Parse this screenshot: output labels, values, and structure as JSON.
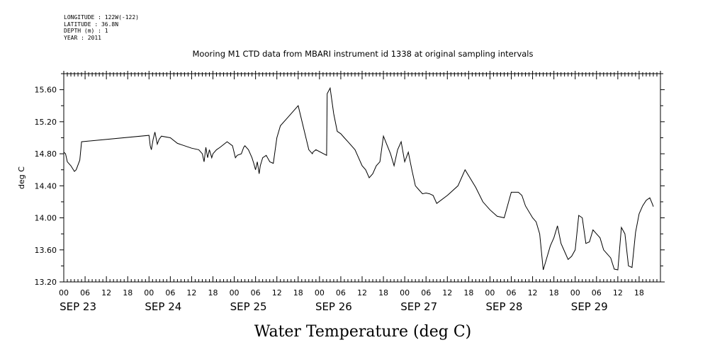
{
  "header": {
    "longitude": "LONGITUDE : 122W(-122)",
    "latitude": "LATITUDE : 36.8N",
    "depth": "DEPTH (m) : 1",
    "year": "YEAR : 2011"
  },
  "chart_data": {
    "type": "line",
    "title": "Mooring M1 CTD data from MBARI instrument id 1338 at original sampling intervals",
    "xlabel": "Water Temperature (deg C)",
    "ylabel": "deg C",
    "xlim": [
      "2011-09-23 00:00",
      "2011-09-30 00:00"
    ],
    "ylim": [
      13.2,
      15.8
    ],
    "y_ticks": [
      "13.20",
      "13.60",
      "14.00",
      "14.40",
      "14.80",
      "15.20",
      "15.60"
    ],
    "hour_ticks": [
      "00",
      "06",
      "12",
      "18",
      "00",
      "06",
      "12",
      "18",
      "00",
      "06",
      "12",
      "18",
      "00",
      "06",
      "12",
      "18",
      "00",
      "06",
      "12",
      "18",
      "00",
      "06",
      "12",
      "18",
      "00",
      "06",
      "12",
      "18"
    ],
    "day_labels": [
      "SEP 23",
      "SEP 24",
      "SEP 25",
      "SEP 26",
      "SEP 27",
      "SEP 28",
      "SEP 29"
    ],
    "grid": false,
    "series": [
      {
        "x": [
          "2011-09-23 00:00",
          "2011-09-23 00:30",
          "2011-09-23 01:00",
          "2011-09-23 02:00",
          "2011-09-23 03:00",
          "2011-09-23 03:30",
          "2011-09-23 04:30",
          "2011-09-23 05:00",
          "2011-09-24 00:00",
          "2011-09-24 00:20",
          "2011-09-24 00:40",
          "2011-09-24 01:10",
          "2011-09-24 01:40",
          "2011-09-24 02:20",
          "2011-09-24 02:50",
          "2011-09-24 03:30",
          "2011-09-24 06:00",
          "2011-09-24 08:00",
          "2011-09-24 12:00",
          "2011-09-24 14:00",
          "2011-09-24 15:00",
          "2011-09-24 15:30",
          "2011-09-24 16:00",
          "2011-09-24 16:30",
          "2011-09-24 17:00",
          "2011-09-24 17:40",
          "2011-09-24 18:00",
          "2011-09-24 19:00",
          "2011-09-24 20:00",
          "2011-09-24 22:00",
          "2011-09-24 23:30",
          "2011-09-25 00:20",
          "2011-09-25 00:50",
          "2011-09-25 02:00",
          "2011-09-25 02:40",
          "2011-09-25 03:00",
          "2011-09-25 04:00",
          "2011-09-25 05:00",
          "2011-09-25 05:30",
          "2011-09-25 06:00",
          "2011-09-25 06:30",
          "2011-09-25 07:00",
          "2011-09-25 07:20",
          "2011-09-25 07:40",
          "2011-09-25 08:00",
          "2011-09-25 09:00",
          "2011-09-25 10:00",
          "2011-09-25 11:00",
          "2011-09-25 12:00",
          "2011-09-25 13:00",
          "2011-09-25 15:00",
          "2011-09-25 18:00",
          "2011-09-25 21:00",
          "2011-09-25 22:00",
          "2011-09-25 22:10",
          "2011-09-25 23:00",
          "2011-09-26 02:00",
          "2011-09-26 02:10",
          "2011-09-26 03:00",
          "2011-09-26 04:00",
          "2011-09-26 05:00",
          "2011-09-26 06:00",
          "2011-09-26 07:00",
          "2011-09-26 08:00",
          "2011-09-26 10:00",
          "2011-09-26 11:00",
          "2011-09-26 12:00",
          "2011-09-26 13:00",
          "2011-09-26 14:00",
          "2011-09-26 15:00",
          "2011-09-26 16:00",
          "2011-09-26 17:00",
          "2011-09-26 18:00",
          "2011-09-26 20:00",
          "2011-09-26 21:00",
          "2011-09-26 22:00",
          "2011-09-26 23:00",
          "2011-09-27 00:00",
          "2011-09-27 01:00",
          "2011-09-27 02:00",
          "2011-09-27 03:00",
          "2011-09-27 04:00",
          "2011-09-27 05:00",
          "2011-09-27 06:00",
          "2011-09-27 07:00",
          "2011-09-27 08:00",
          "2011-09-27 09:00",
          "2011-09-27 12:00",
          "2011-09-27 15:00",
          "2011-09-27 16:00",
          "2011-09-27 17:00",
          "2011-09-27 20:00",
          "2011-09-27 22:00",
          "2011-09-28 00:00",
          "2011-09-28 02:00",
          "2011-09-28 04:00",
          "2011-09-28 06:00",
          "2011-09-28 08:00",
          "2011-09-28 09:00",
          "2011-09-28 10:00",
          "2011-09-28 12:00",
          "2011-09-28 13:00",
          "2011-09-28 14:00",
          "2011-09-28 15:00",
          "2011-09-28 16:00",
          "2011-09-28 17:00",
          "2011-09-28 18:00",
          "2011-09-28 19:00",
          "2011-09-28 20:00",
          "2011-09-28 21:00",
          "2011-09-28 22:00",
          "2011-09-28 23:00",
          "2011-09-29 00:00",
          "2011-09-29 01:00",
          "2011-09-29 02:00",
          "2011-09-29 03:00",
          "2011-09-29 04:00",
          "2011-09-29 05:00",
          "2011-09-29 06:00",
          "2011-09-29 07:00",
          "2011-09-29 08:00",
          "2011-09-29 09:00",
          "2011-09-29 10:00",
          "2011-09-29 11:00",
          "2011-09-29 12:00",
          "2011-09-29 13:00",
          "2011-09-29 14:00",
          "2011-09-29 15:00",
          "2011-09-29 16:00",
          "2011-09-29 17:00",
          "2011-09-29 18:00",
          "2011-09-29 19:00",
          "2011-09-29 20:00",
          "2011-09-29 21:00",
          "2011-09-29 21:40",
          "2011-09-29 22:00"
        ],
        "values": [
          14.82,
          14.8,
          14.7,
          14.65,
          14.58,
          14.6,
          14.72,
          14.95,
          15.03,
          14.9,
          14.85,
          14.98,
          15.07,
          14.92,
          14.98,
          15.02,
          15.0,
          14.93,
          14.87,
          14.85,
          14.8,
          14.7,
          14.88,
          14.75,
          14.85,
          14.75,
          14.8,
          14.85,
          14.88,
          14.95,
          14.9,
          14.75,
          14.78,
          14.8,
          14.88,
          14.9,
          14.85,
          14.75,
          14.68,
          14.6,
          14.7,
          14.55,
          14.65,
          14.7,
          14.75,
          14.78,
          14.7,
          14.68,
          15.0,
          15.15,
          15.25,
          15.4,
          14.85,
          14.8,
          14.82,
          14.85,
          14.78,
          15.55,
          15.62,
          15.3,
          15.08,
          15.05,
          15.0,
          14.95,
          14.85,
          14.75,
          14.65,
          14.6,
          14.5,
          14.55,
          14.65,
          14.7,
          15.02,
          14.8,
          14.65,
          14.85,
          14.95,
          14.7,
          14.82,
          14.6,
          14.4,
          14.35,
          14.3,
          14.31,
          14.3,
          14.28,
          14.18,
          14.28,
          14.4,
          14.5,
          14.6,
          14.38,
          14.2,
          14.1,
          14.02,
          14.0,
          14.32,
          14.32,
          14.28,
          14.15,
          14.0,
          13.95,
          13.8,
          13.35,
          13.5,
          13.65,
          13.75,
          13.9,
          13.68,
          13.58,
          13.48,
          13.52,
          13.6,
          14.03,
          14.0,
          13.68,
          13.7,
          13.85,
          13.8,
          13.75,
          13.6,
          13.55,
          13.5,
          13.36,
          13.35,
          13.88,
          13.8,
          13.4,
          13.38,
          13.82,
          14.05,
          14.15,
          14.22,
          14.25,
          14.18,
          14.14
        ]
      }
    ]
  }
}
